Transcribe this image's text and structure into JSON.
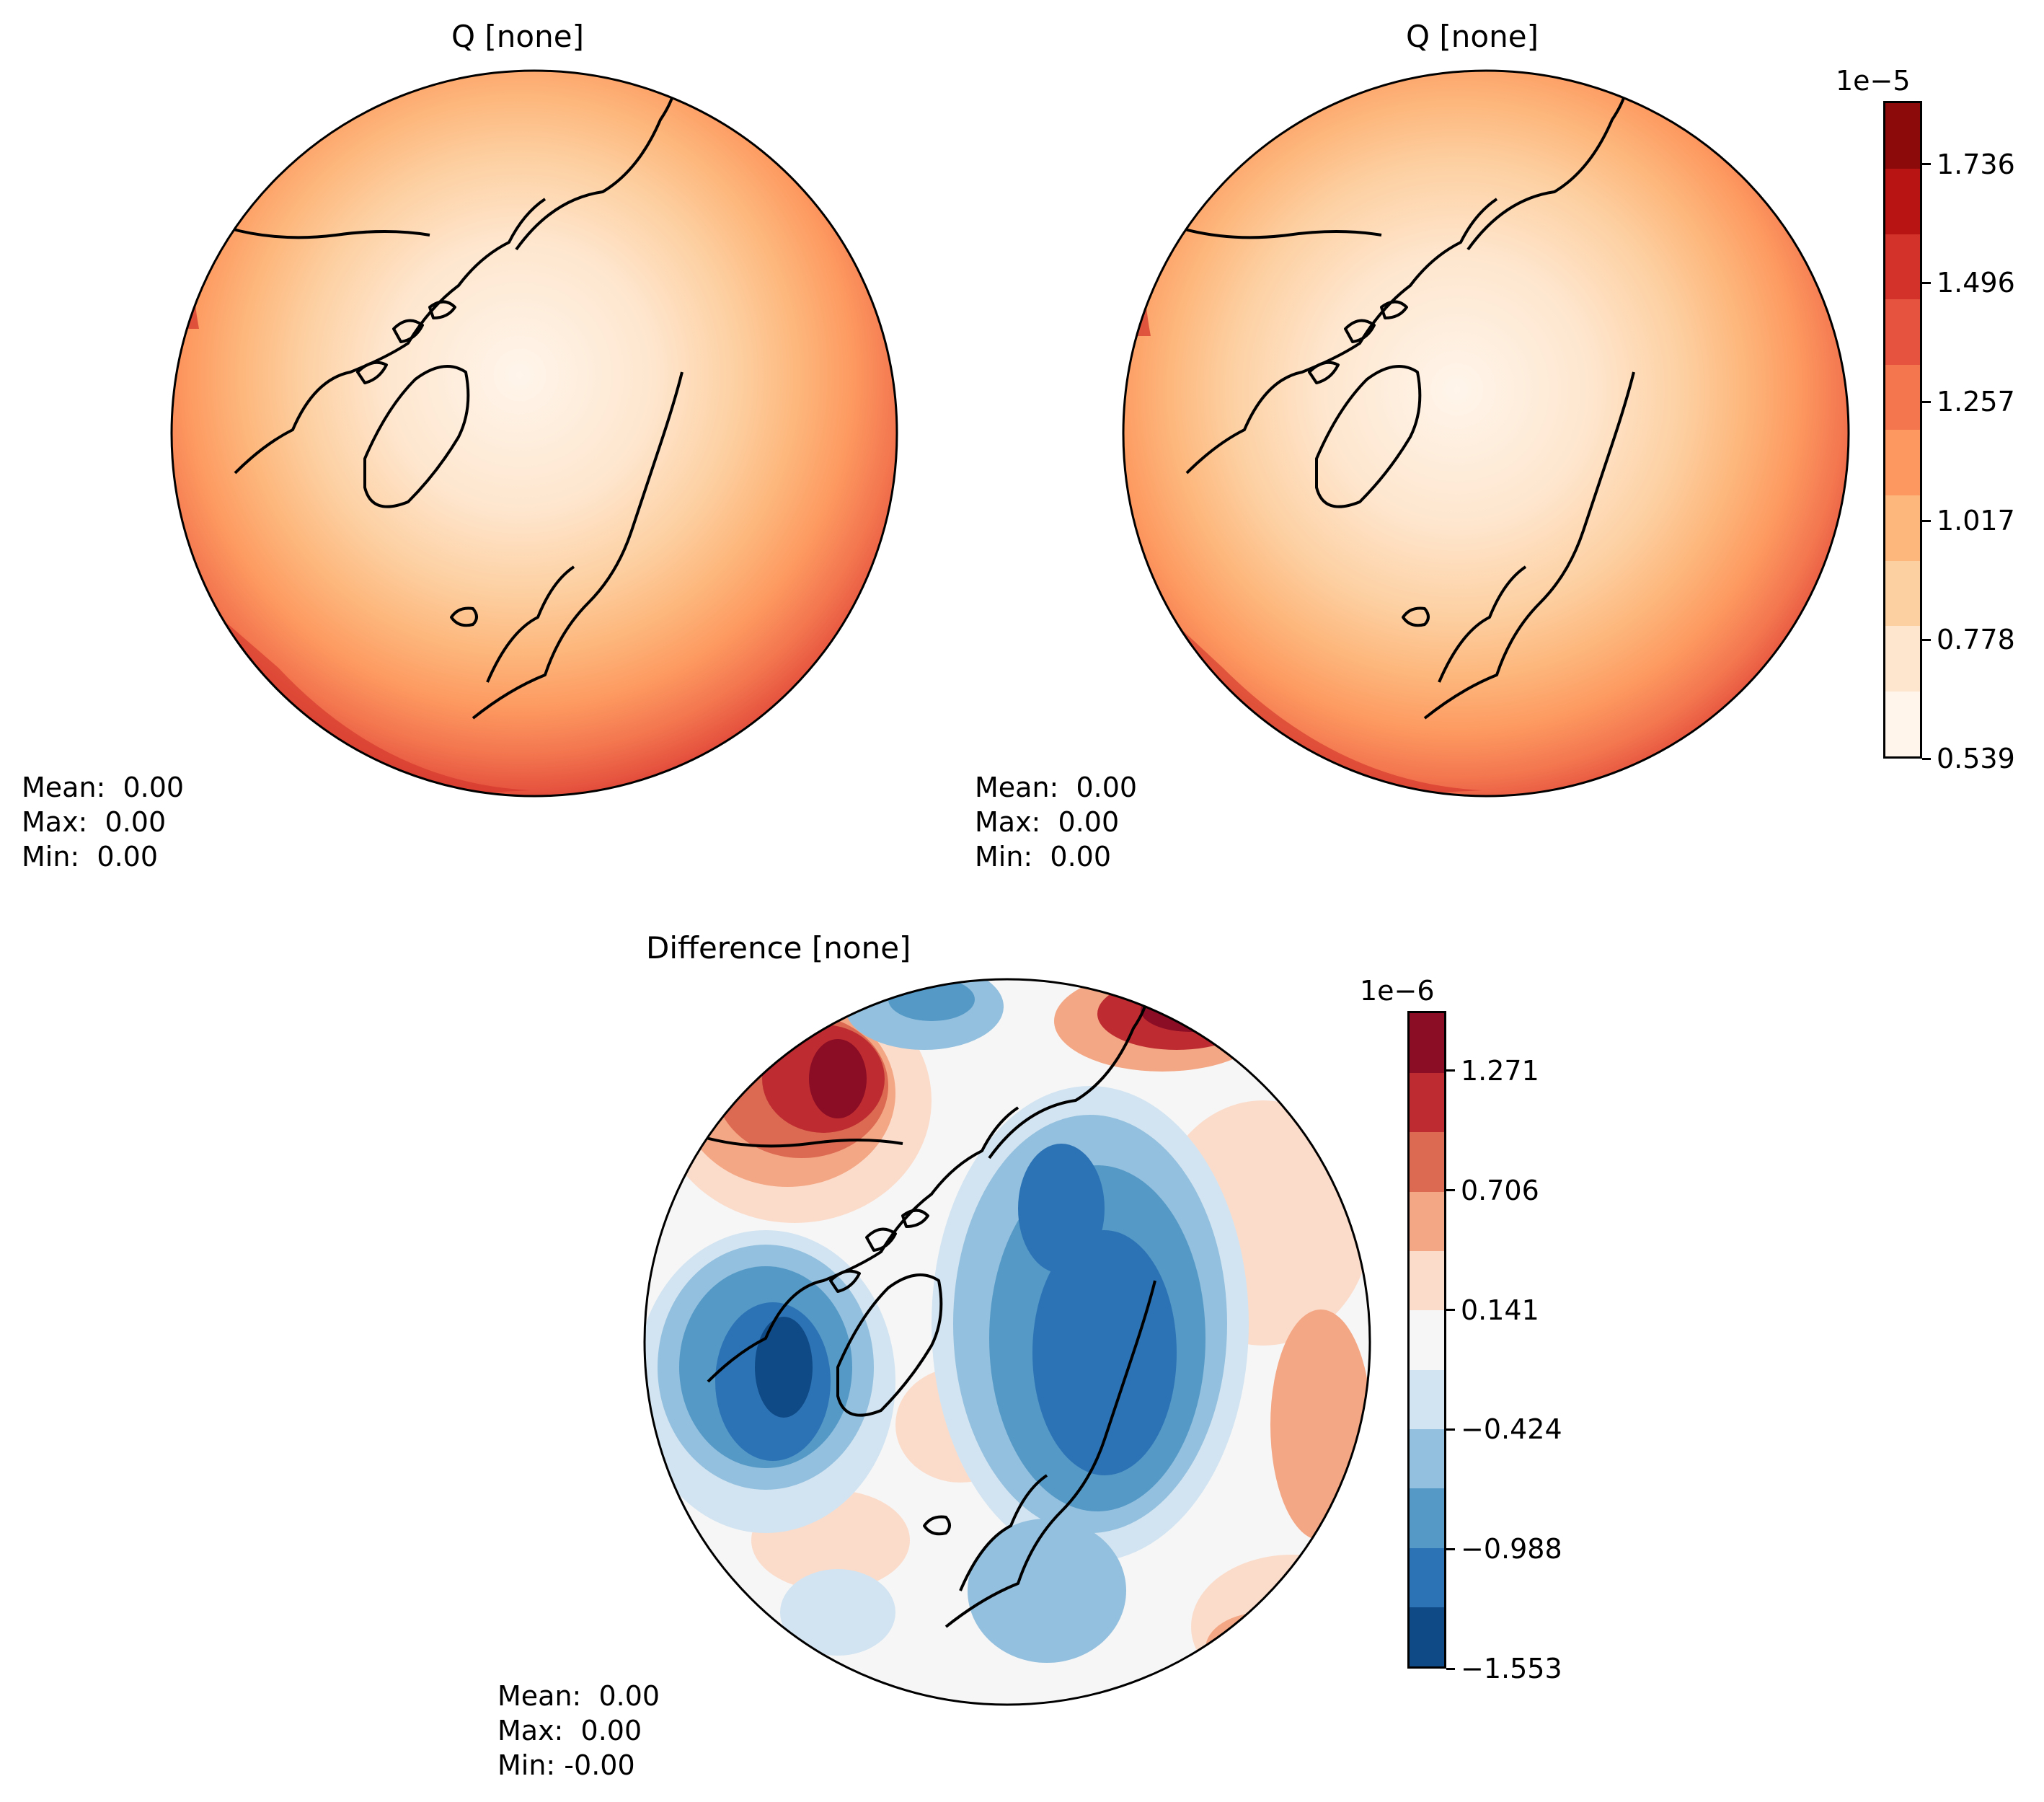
{
  "panels": [
    {
      "title": "Q [none]",
      "stats": {
        "mean": "Mean:  0.00",
        "max": "Max:  0.00",
        "min": "Min:  0.00"
      }
    },
    {
      "title": "Q [none]",
      "stats": {
        "mean": "Mean:  0.00",
        "max": "Max:  0.00",
        "min": "Min:  0.00"
      }
    },
    {
      "title": "Difference [none]",
      "stats": {
        "mean": "Mean:  0.00",
        "max": "Max:  0.00",
        "min": "Min: -0.00"
      }
    }
  ],
  "colorbars": {
    "main": {
      "exponent": "1e−5",
      "tick_labels": [
        "0.539",
        "0.778",
        "1.017",
        "1.257",
        "1.496",
        "1.736"
      ],
      "colors": [
        "#fff5eb",
        "#fee6ce",
        "#fdd0a2",
        "#fdb67b",
        "#fd9960",
        "#f3764f",
        "#e6543f",
        "#d23229",
        "#b81414",
        "#8c0a0a"
      ]
    },
    "diff": {
      "exponent": "1e−6",
      "tick_labels": [
        "−1.553",
        "−0.988",
        "−0.424",
        "0.141",
        "0.706",
        "1.271"
      ],
      "colors": [
        "#104a86",
        "#2c73b5",
        "#5599c7",
        "#93c0de",
        "#d2e4f1",
        "#f6f6f6",
        "#fbdccb",
        "#f4a784",
        "#dc6a52",
        "#be2c31",
        "#8a0c25"
      ]
    }
  }
}
